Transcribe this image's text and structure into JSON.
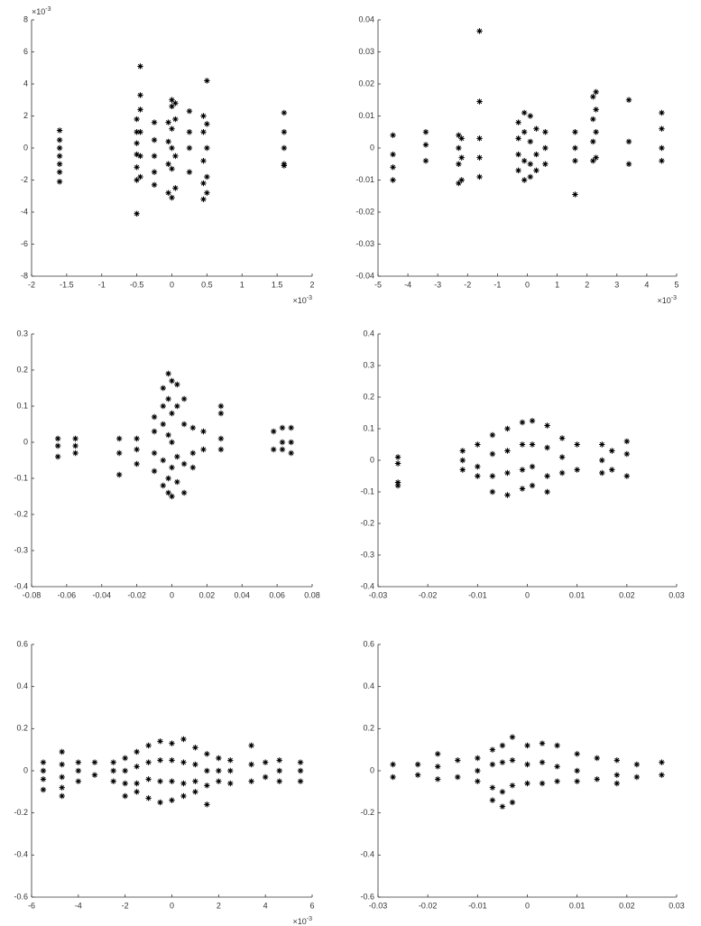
{
  "chart_data": [
    {
      "type": "scatter",
      "marker": "*",
      "color": "#000000",
      "xlim": [
        -2,
        2
      ],
      "xticks": [
        -2,
        -1.5,
        -1,
        -0.5,
        0,
        0.5,
        1,
        1.5,
        2
      ],
      "ylim": [
        -8,
        8
      ],
      "yticks": [
        -8,
        -6,
        -4,
        -2,
        0,
        2,
        4,
        6,
        8
      ],
      "x_multiplier": {
        "base": "×10",
        "exponent": "-3"
      },
      "y_multiplier": {
        "base": "×10",
        "exponent": "-3"
      },
      "x": [
        -1.6,
        -1.6,
        -1.6,
        -1.6,
        -1.6,
        -1.6,
        -1.6,
        -0.5,
        -0.5,
        -0.5,
        -0.5,
        -0.5,
        -0.5,
        -0.5,
        -0.45,
        -0.45,
        -0.45,
        -0.45,
        -0.45,
        -0.45,
        -0.25,
        -0.25,
        -0.25,
        -0.25,
        -0.25,
        -0.05,
        -0.05,
        -0.05,
        -0.05,
        0,
        0,
        0,
        0,
        0,
        0,
        0.05,
        0.05,
        0.05,
        0.05,
        0.25,
        0.25,
        0.25,
        0.25,
        0.45,
        0.45,
        0.45,
        0.45,
        0.45,
        0.5,
        0.5,
        0.5,
        0.5,
        0.5,
        1.6,
        1.6,
        1.6,
        1.6,
        1.6
      ],
      "values": [
        1.1,
        0.5,
        0,
        -0.5,
        -1,
        -1.5,
        -2.1,
        1.8,
        1,
        0.3,
        -0.4,
        -1.2,
        -2,
        -4.1,
        5.1,
        3.3,
        2.4,
        1,
        -0.5,
        -1.8,
        1.6,
        0.5,
        -0.5,
        -1.5,
        -2.3,
        1.6,
        0.4,
        -1,
        -2.8,
        3,
        2.6,
        1.2,
        0,
        -1.3,
        -3.1,
        2.8,
        1.8,
        -0.5,
        -2.5,
        2.3,
        1,
        0,
        -1.5,
        2,
        1,
        -0.8,
        -2.2,
        -3.2,
        4.2,
        1.5,
        0,
        -1.8,
        -2.8,
        2.2,
        1,
        0,
        -1,
        -1.1
      ]
    },
    {
      "type": "scatter",
      "marker": "*",
      "color": "#000000",
      "xlim": [
        -5,
        5
      ],
      "xticks": [
        -5,
        -4,
        -3,
        -2,
        -1,
        0,
        1,
        2,
        3,
        4,
        5
      ],
      "ylim": [
        -0.04,
        0.04
      ],
      "yticks": [
        -0.04,
        -0.03,
        -0.02,
        -0.01,
        0,
        0.01,
        0.02,
        0.03,
        0.04
      ],
      "x_multiplier": {
        "base": "×10",
        "exponent": "-3"
      },
      "x": [
        -4.5,
        -4.5,
        -4.5,
        -4.5,
        -3.4,
        -3.4,
        -3.4,
        -2.3,
        -2.3,
        -2.3,
        -2.3,
        -2.2,
        -2.2,
        -2.2,
        -1.6,
        -1.6,
        -1.6,
        -1.6,
        -1.6,
        -0.3,
        -0.3,
        -0.3,
        -0.3,
        -0.1,
        -0.1,
        -0.1,
        -0.1,
        0.1,
        0.1,
        0.1,
        0.1,
        0.3,
        0.3,
        0.3,
        0.6,
        0.6,
        0.6,
        1.6,
        1.6,
        1.6,
        1.6,
        2.2,
        2.2,
        2.2,
        2.2,
        2.3,
        2.3,
        2.3,
        2.3,
        3.4,
        3.4,
        3.4,
        4.5,
        4.5,
        4.5,
        4.5
      ],
      "values": [
        0.004,
        -0.002,
        -0.006,
        -0.01,
        0.005,
        0.001,
        -0.004,
        0.004,
        0,
        -0.005,
        -0.011,
        0.003,
        -0.003,
        -0.01,
        0.0365,
        0.0145,
        0.003,
        -0.003,
        -0.009,
        0.008,
        0.003,
        -0.002,
        -0.007,
        0.011,
        0.005,
        -0.004,
        -0.01,
        0.01,
        0.002,
        -0.005,
        -0.009,
        0.006,
        -0.002,
        -0.007,
        0.005,
        0,
        -0.005,
        0.005,
        0,
        -0.004,
        -0.0145,
        0.016,
        0.009,
        0.002,
        -0.004,
        0.0175,
        0.012,
        0.005,
        -0.003,
        0.015,
        0.002,
        -0.005,
        0.011,
        0.006,
        0,
        -0.004
      ]
    },
    {
      "type": "scatter",
      "marker": "*",
      "color": "#000000",
      "xlim": [
        -0.08,
        0.08
      ],
      "xticks": [
        -0.08,
        -0.06,
        -0.04,
        -0.02,
        0,
        0.02,
        0.04,
        0.06,
        0.08
      ],
      "ylim": [
        -0.4,
        0.3
      ],
      "yticks": [
        -0.4,
        -0.3,
        -0.2,
        -0.1,
        0,
        0.1,
        0.2,
        0.3
      ],
      "x": [
        -0.065,
        -0.065,
        -0.065,
        -0.055,
        -0.055,
        -0.055,
        -0.03,
        -0.03,
        -0.03,
        -0.02,
        -0.02,
        -0.02,
        -0.01,
        -0.01,
        -0.01,
        -0.01,
        -0.005,
        -0.005,
        -0.005,
        -0.005,
        -0.005,
        -0.002,
        -0.002,
        -0.002,
        -0.002,
        -0.002,
        0,
        0,
        0,
        0,
        0,
        0.003,
        0.003,
        0.003,
        0.003,
        0.007,
        0.007,
        0.007,
        0.007,
        0.012,
        0.012,
        0.012,
        0.018,
        0.018,
        0.028,
        0.028,
        0.028,
        0.028,
        0.058,
        0.058,
        0.063,
        0.063,
        0.063,
        0.068,
        0.068,
        0.068
      ],
      "values": [
        0.01,
        -0.01,
        -0.04,
        0.01,
        -0.01,
        -0.03,
        0.01,
        -0.03,
        -0.09,
        0.01,
        -0.02,
        -0.06,
        0.07,
        0.03,
        -0.03,
        -0.08,
        0.15,
        0.1,
        0.05,
        -0.05,
        -0.12,
        0.19,
        0.12,
        0.02,
        -0.1,
        -0.14,
        0.17,
        0.08,
        0,
        -0.07,
        -0.15,
        0.16,
        0.1,
        -0.04,
        -0.11,
        0.12,
        0.05,
        -0.06,
        -0.14,
        0.04,
        -0.03,
        -0.07,
        0.03,
        -0.02,
        0.1,
        0.08,
        0.01,
        -0.02,
        0.03,
        -0.02,
        0.04,
        0,
        -0.02,
        0.04,
        0,
        -0.03
      ]
    },
    {
      "type": "scatter",
      "marker": "*",
      "color": "#000000",
      "xlim": [
        -0.03,
        0.03
      ],
      "xticks": [
        -0.03,
        -0.02,
        -0.01,
        0,
        0.01,
        0.02,
        0.03
      ],
      "ylim": [
        -0.4,
        0.4
      ],
      "yticks": [
        -0.4,
        -0.3,
        -0.2,
        -0.1,
        0,
        0.1,
        0.2,
        0.3,
        0.4
      ],
      "x": [
        -0.026,
        -0.026,
        -0.026,
        -0.026,
        -0.013,
        -0.013,
        -0.013,
        -0.01,
        -0.01,
        -0.01,
        -0.007,
        -0.007,
        -0.007,
        -0.007,
        -0.004,
        -0.004,
        -0.004,
        -0.004,
        -0.001,
        -0.001,
        -0.001,
        -0.001,
        0.001,
        0.001,
        0.001,
        0.001,
        0.004,
        0.004,
        0.004,
        0.004,
        0.007,
        0.007,
        0.007,
        0.01,
        0.01,
        0.015,
        0.015,
        0.015,
        0.017,
        0.017,
        0.02,
        0.02,
        0.02
      ],
      "values": [
        0.01,
        -0.01,
        -0.07,
        -0.08,
        0.03,
        0,
        -0.03,
        0.05,
        -0.02,
        -0.05,
        0.08,
        0.02,
        -0.05,
        -0.1,
        0.1,
        0.03,
        -0.04,
        -0.11,
        0.12,
        0.05,
        -0.03,
        -0.09,
        0.125,
        0.05,
        -0.02,
        -0.08,
        0.11,
        0.04,
        -0.05,
        -0.1,
        0.07,
        0.01,
        -0.04,
        0.05,
        -0.03,
        0.05,
        0,
        -0.04,
        0.03,
        -0.03,
        0.06,
        0.02,
        -0.05
      ]
    },
    {
      "type": "scatter",
      "marker": "*",
      "color": "#000000",
      "xlim": [
        -6,
        6
      ],
      "xticks": [
        -6,
        -4,
        -2,
        0,
        2,
        4,
        6
      ],
      "ylim": [
        -0.6,
        0.6
      ],
      "yticks": [
        -0.6,
        -0.4,
        -0.2,
        0,
        0.2,
        0.4,
        0.6
      ],
      "x_multiplier": {
        "base": "×10",
        "exponent": "-3"
      },
      "x": [
        -5.5,
        -5.5,
        -5.5,
        -5.5,
        -4.7,
        -4.7,
        -4.7,
        -4.7,
        -4.7,
        -4,
        -4,
        -4,
        -3.3,
        -3.3,
        -2.5,
        -2.5,
        -2.5,
        -2,
        -2,
        -2,
        -2,
        -1.5,
        -1.5,
        -1.5,
        -1.5,
        -1,
        -1,
        -1,
        -1,
        -0.5,
        -0.5,
        -0.5,
        -0.5,
        0,
        0,
        0,
        0,
        0.5,
        0.5,
        0.5,
        0.5,
        1,
        1,
        1,
        1,
        1.5,
        1.5,
        1.5,
        1.5,
        2,
        2,
        2,
        2.5,
        2.5,
        2.5,
        3.4,
        3.4,
        3.4,
        4,
        4,
        4.6,
        4.6,
        4.6,
        5.5,
        5.5,
        5.5
      ],
      "values": [
        0.04,
        0,
        -0.04,
        -0.09,
        0.09,
        0.03,
        -0.03,
        -0.08,
        -0.12,
        0.04,
        0,
        -0.05,
        0.04,
        -0.02,
        0.04,
        0,
        -0.05,
        0.06,
        0,
        -0.06,
        -0.12,
        0.09,
        0.02,
        -0.06,
        -0.1,
        0.12,
        0.04,
        -0.04,
        -0.13,
        0.14,
        0.05,
        -0.05,
        -0.15,
        0.13,
        0.05,
        -0.05,
        -0.14,
        0.15,
        0.04,
        -0.06,
        -0.12,
        0.11,
        0.03,
        -0.05,
        -0.1,
        0.08,
        0,
        -0.07,
        -0.16,
        0.06,
        0,
        -0.05,
        0.05,
        0,
        -0.06,
        0.12,
        0.03,
        -0.05,
        0.04,
        -0.03,
        0.05,
        0,
        -0.05,
        0.04,
        0,
        -0.05
      ]
    },
    {
      "type": "scatter",
      "marker": "*",
      "color": "#000000",
      "xlim": [
        -0.03,
        0.03
      ],
      "xticks": [
        -0.03,
        -0.02,
        -0.01,
        0,
        0.01,
        0.02,
        0.03
      ],
      "ylim": [
        -0.6,
        0.6
      ],
      "yticks": [
        -0.6,
        -0.4,
        -0.2,
        0,
        0.2,
        0.4,
        0.6
      ],
      "x": [
        -0.027,
        -0.027,
        -0.022,
        -0.022,
        -0.018,
        -0.018,
        -0.018,
        -0.014,
        -0.014,
        -0.01,
        -0.01,
        -0.01,
        -0.007,
        -0.007,
        -0.007,
        -0.007,
        -0.005,
        -0.005,
        -0.005,
        -0.005,
        -0.003,
        -0.003,
        -0.003,
        -0.003,
        0,
        0,
        0,
        0.003,
        0.003,
        0.003,
        0.006,
        0.006,
        0.006,
        0.01,
        0.01,
        0.01,
        0.014,
        0.014,
        0.018,
        0.018,
        0.018,
        0.022,
        0.022,
        0.027,
        0.027
      ],
      "values": [
        0.03,
        -0.03,
        0.03,
        -0.02,
        0.08,
        0.02,
        -0.04,
        0.05,
        -0.03,
        0.06,
        0,
        -0.05,
        0.1,
        0.03,
        -0.08,
        -0.14,
        0.12,
        0.04,
        -0.1,
        -0.17,
        0.16,
        0.05,
        -0.07,
        -0.15,
        0.12,
        0.03,
        -0.06,
        0.13,
        0.04,
        -0.06,
        0.12,
        0.02,
        -0.05,
        0.08,
        0,
        -0.05,
        0.06,
        -0.04,
        0.05,
        -0.02,
        -0.06,
        0.03,
        -0.03,
        0.04,
        -0.02
      ]
    }
  ]
}
